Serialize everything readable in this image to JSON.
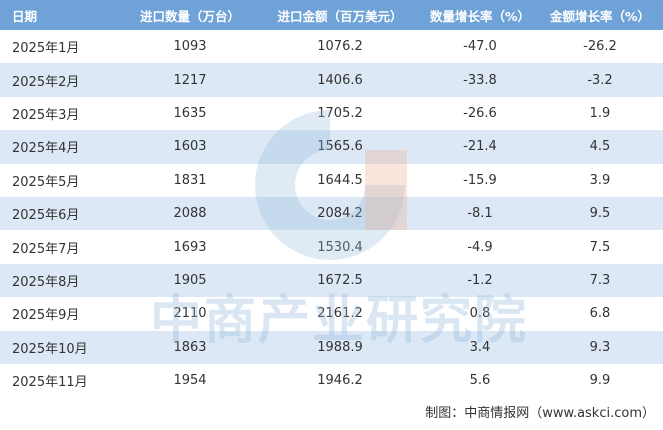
{
  "table": {
    "header": [
      "日期",
      "进口数量（万台）",
      "进口金额（百万美元）",
      "数量增长率（%）",
      "金额增长率（%）"
    ],
    "rows": [
      [
        "2025年1月",
        "1093",
        "1076.2",
        "-47.0",
        "-26.2"
      ],
      [
        "2025年2月",
        "1217",
        "1406.6",
        "-33.8",
        "-3.2"
      ],
      [
        "2025年3月",
        "1635",
        "1705.2",
        "-26.6",
        "1.9"
      ],
      [
        "2025年4月",
        "1603",
        "1565.6",
        "-21.4",
        "4.5"
      ],
      [
        "2025年5月",
        "1831",
        "1644.5",
        "-15.9",
        "3.9"
      ],
      [
        "2025年6月",
        "2088",
        "2084.2",
        "-8.1",
        "9.5"
      ],
      [
        "2025年7月",
        "1693",
        "1530.4",
        "-4.9",
        "7.5"
      ],
      [
        "2025年8月",
        "1905",
        "1672.5",
        "-1.2",
        "7.3"
      ],
      [
        "2025年9月",
        "2110",
        "2161.2",
        "0.8",
        "6.8"
      ],
      [
        "2025年10月",
        "1863",
        "1988.9",
        "3.4",
        "9.3"
      ],
      [
        "2025年11月",
        "1954",
        "1946.2",
        "5.6",
        "9.9"
      ]
    ]
  },
  "watermark": "中商产业研究院",
  "footer": "制图：中商情报网（www.askci.com）"
}
